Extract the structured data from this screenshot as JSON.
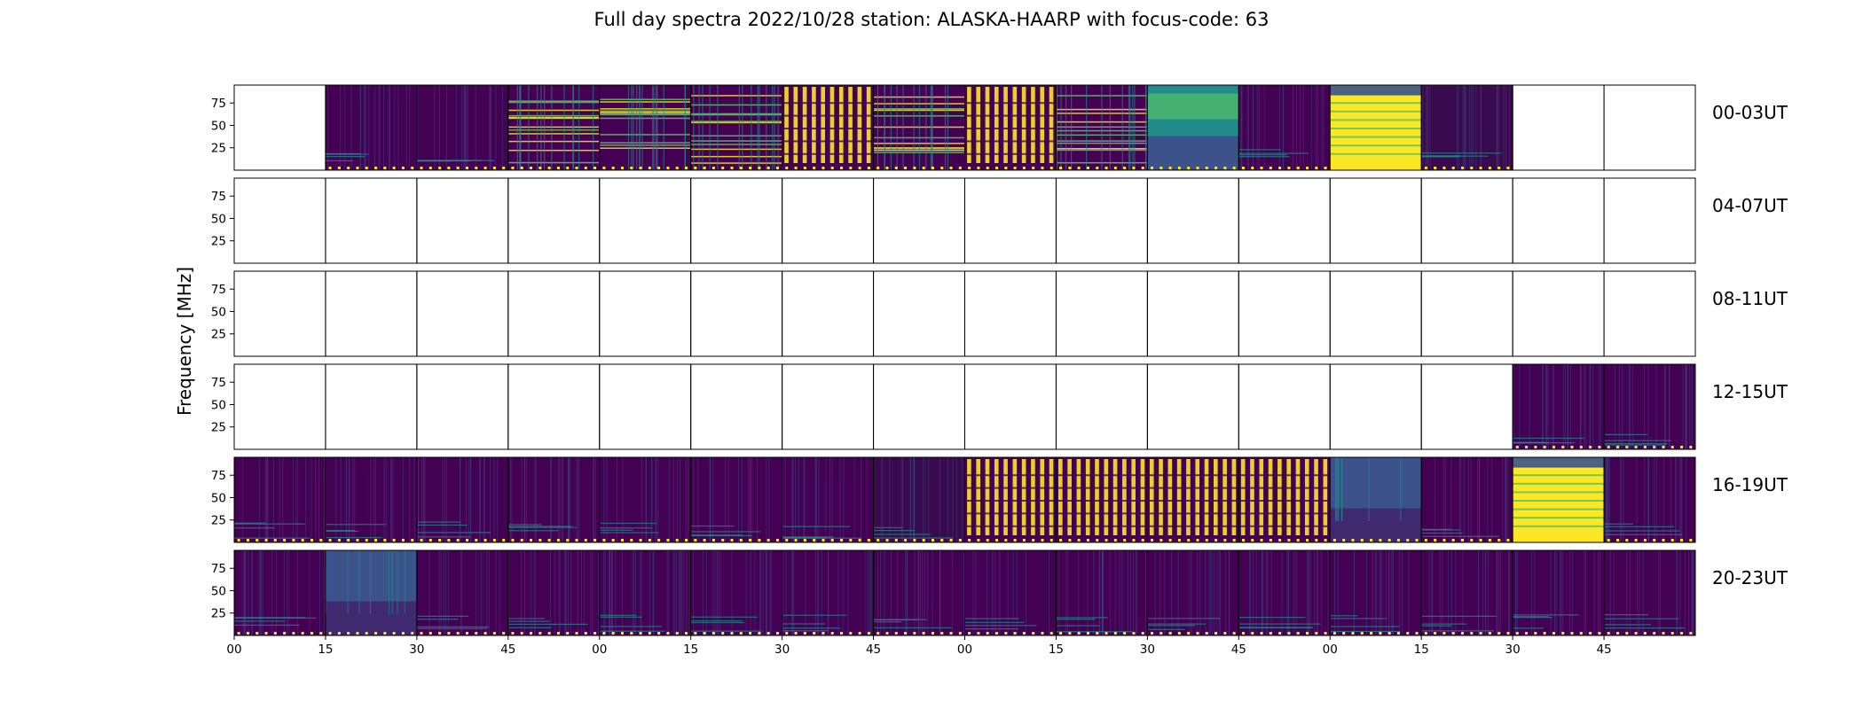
{
  "title": "Full day spectra 2022/10/28 station: ALASKA-HAARP with focus-code: 63",
  "chart_data": {
    "type": "heatmap",
    "title": "Full day spectra 2022/10/28 station: ALASKA-HAARP with focus-code: 63",
    "xlabel": "",
    "ylabel": "Frequency [MHz]",
    "ylim": [
      0,
      95
    ],
    "y_ticks": [
      25,
      50,
      75
    ],
    "x_tick_labels": [
      "00",
      "15",
      "30",
      "45",
      "00",
      "15",
      "30",
      "45",
      "00",
      "15",
      "30",
      "45",
      "00",
      "15",
      "30",
      "45"
    ],
    "colormap": [
      "#440154",
      "#3b528b",
      "#21918c",
      "#5ec962",
      "#fde725"
    ],
    "rows": [
      {
        "label": "00-03UT",
        "panels": [
          "empty",
          "dim",
          "dim",
          "busy",
          "busy",
          "busy",
          "bands",
          "busy",
          "bands",
          "busy",
          "bright",
          "dim",
          "yellow",
          "dark",
          "empty",
          "empty"
        ]
      },
      {
        "label": "04-07UT",
        "panels": [
          "empty",
          "empty",
          "empty",
          "empty",
          "empty",
          "empty",
          "empty",
          "empty",
          "empty",
          "empty",
          "empty",
          "empty",
          "empty",
          "empty",
          "empty",
          "empty"
        ]
      },
      {
        "label": "08-11UT",
        "panels": [
          "empty",
          "empty",
          "empty",
          "empty",
          "empty",
          "empty",
          "empty",
          "empty",
          "empty",
          "empty",
          "empty",
          "empty",
          "empty",
          "empty",
          "empty",
          "empty"
        ]
      },
      {
        "label": "12-15UT",
        "panels": [
          "empty",
          "empty",
          "empty",
          "empty",
          "empty",
          "empty",
          "empty",
          "empty",
          "empty",
          "empty",
          "empty",
          "empty",
          "empty",
          "empty",
          "dim",
          "dim"
        ]
      },
      {
        "label": "16-19UT",
        "panels": [
          "dim",
          "dim",
          "dim",
          "dim",
          "dim",
          "dim",
          "dim",
          "dark",
          "bands",
          "bands",
          "bands",
          "bands",
          "teal",
          "dim",
          "yellow",
          "dim"
        ]
      },
      {
        "label": "20-23UT",
        "panels": [
          "dim",
          "teal",
          "dim",
          "dim",
          "dim",
          "dim",
          "dim",
          "dim",
          "dim",
          "dim",
          "dim",
          "dim",
          "dim",
          "dim",
          "dim",
          "dim"
        ]
      }
    ]
  }
}
